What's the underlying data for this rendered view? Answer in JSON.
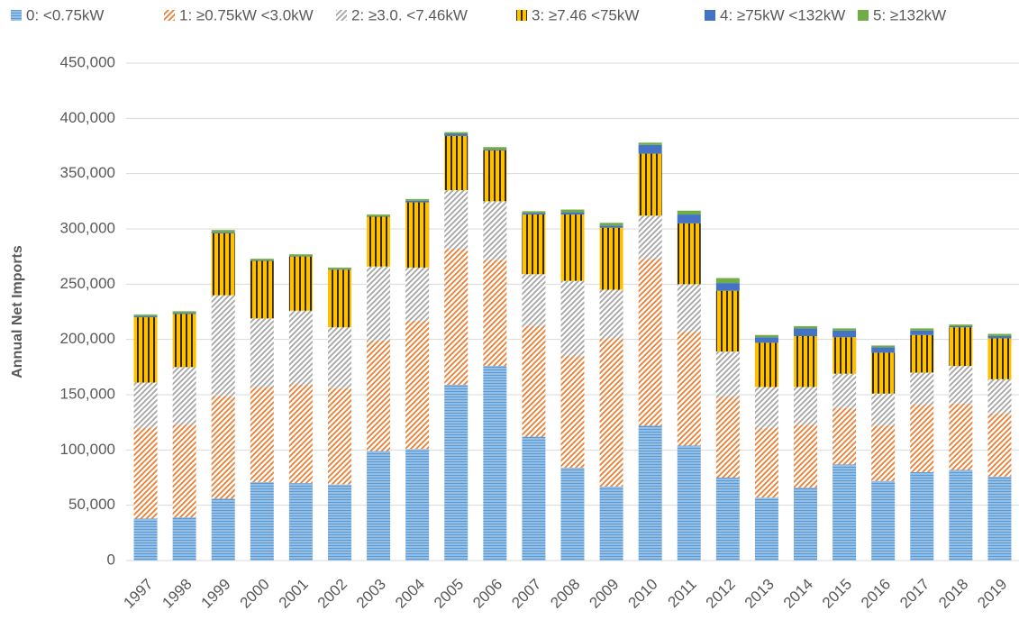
{
  "chart_data": {
    "type": "stacked-bar",
    "y_label": "Annual Net Imports",
    "categories": [
      "1997",
      "1998",
      "1999",
      "2000",
      "2001",
      "2002",
      "2003",
      "2004",
      "2005",
      "2006",
      "2007",
      "2008",
      "2009",
      "2010",
      "2011",
      "2012",
      "2013",
      "2014",
      "2015",
      "2016",
      "2017",
      "2018",
      "2019"
    ],
    "series": [
      {
        "name": "0: <0.75kW",
        "color": "#5b9bd5",
        "values": [
          38000,
          39000,
          56000,
          71000,
          70000,
          69000,
          99000,
          101000,
          159000,
          176000,
          112000,
          84000,
          67000,
          122000,
          104000,
          75000,
          57000,
          66000,
          87000,
          72000,
          80000,
          82000,
          76000
        ]
      },
      {
        "name": "1: ≥0.75kW <3.0kW",
        "color": "#ed7d31",
        "values": [
          82000,
          84000,
          93000,
          86000,
          89000,
          87000,
          100000,
          116000,
          123000,
          96000,
          100000,
          101000,
          134000,
          151000,
          103000,
          73000,
          63000,
          57000,
          51000,
          50000,
          61000,
          60000,
          57000
        ]
      },
      {
        "name": "2: ≥3.0. <7.46kW",
        "color": "#a5a5a5",
        "values": [
          41000,
          52000,
          91000,
          62000,
          67000,
          55000,
          67000,
          48000,
          53000,
          53000,
          47000,
          68000,
          44000,
          39000,
          43000,
          41000,
          37000,
          34000,
          31000,
          29000,
          29000,
          34000,
          31000
        ]
      },
      {
        "name": "3: ≥7.46 <75kW",
        "color": "#ffc000",
        "values": [
          59000,
          48000,
          56000,
          52000,
          49000,
          52000,
          45000,
          59000,
          49000,
          46000,
          54000,
          60000,
          56000,
          56000,
          55000,
          55000,
          40000,
          46000,
          33000,
          37000,
          34000,
          35000,
          37000
        ]
      },
      {
        "name": "4: ≥75kW <132kW",
        "color": "#4472c4",
        "values": [
          1000,
          1000,
          1000,
          500,
          500,
          500,
          500,
          1500,
          2000,
          1000,
          1500,
          2000,
          2000,
          8000,
          8000,
          7000,
          5000,
          7000,
          6000,
          5000,
          4000,
          1000,
          2000
        ]
      },
      {
        "name": "5: ≥132kW",
        "color": "#70ad47",
        "values": [
          1500,
          1500,
          2000,
          1500,
          1500,
          1500,
          1500,
          1500,
          1500,
          2000,
          1500,
          2500,
          2500,
          2000,
          3500,
          4500,
          2000,
          2000,
          2000,
          1500,
          2000,
          1500,
          2000
        ]
      }
    ],
    "ylim": [
      0,
      450000
    ],
    "yticks": [
      0,
      {
        "value": 50000,
        "label": "50,000"
      },
      {
        "value": 100000,
        "label": "100,000"
      },
      {
        "value": 150000,
        "label": "150,000"
      },
      {
        "value": 200000,
        "label": "200,000"
      },
      {
        "value": 250000,
        "label": "250,000"
      },
      {
        "value": 300000,
        "label": "300,000"
      },
      {
        "value": 350000,
        "label": "350,000"
      },
      {
        "value": 400000,
        "label": "400,000"
      },
      {
        "value": 450000,
        "label": "450,000"
      }
    ],
    "grid": true
  }
}
